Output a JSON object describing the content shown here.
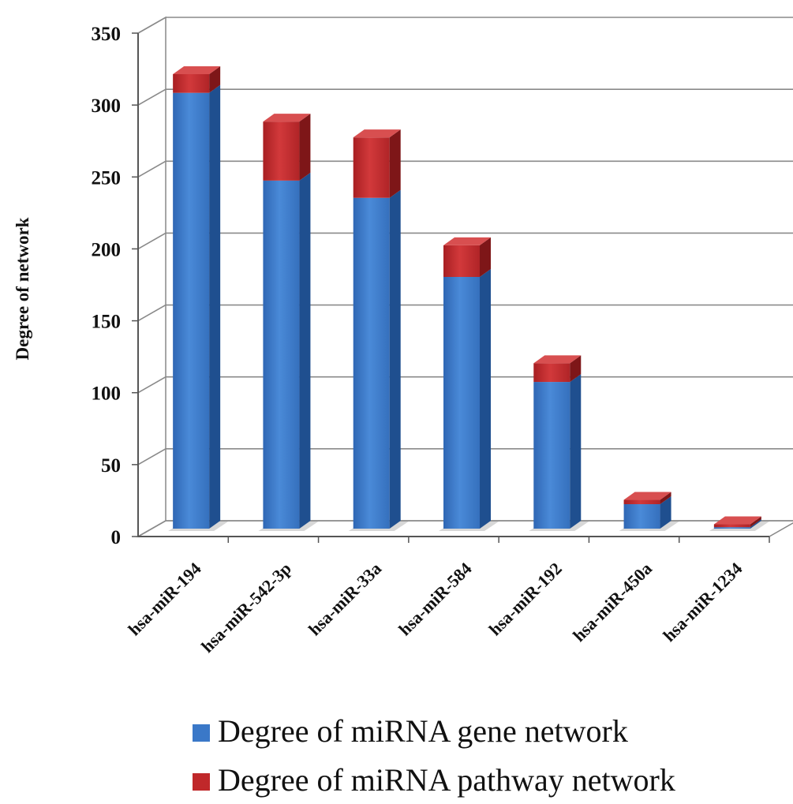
{
  "chart_data": {
    "type": "bar",
    "stacked": true,
    "three_d": true,
    "title": "",
    "xlabel": "",
    "ylabel": "Degree of network",
    "ylim": [
      0,
      350
    ],
    "yticks": [
      "0",
      "50",
      "100",
      "150",
      "200",
      "250",
      "300",
      "350"
    ],
    "categories": [
      "hsa-miR-194",
      "hsa-miR-542-3p",
      "hsa-miR-33a",
      "hsa-miR-584",
      "hsa-miR-192",
      "hsa-miR-450a",
      "hsa-miR-1234"
    ],
    "series": [
      {
        "name": "Degree of miRNA gene network",
        "values": [
          303,
          242,
          230,
          175,
          102,
          17,
          1
        ],
        "color": "#3a78c8"
      },
      {
        "name": "Degree of miRNA pathway network",
        "values": [
          13,
          41,
          42,
          22,
          13,
          3,
          2
        ],
        "color": "#c0282a"
      }
    ],
    "grid": true,
    "legend_position": "bottom"
  }
}
